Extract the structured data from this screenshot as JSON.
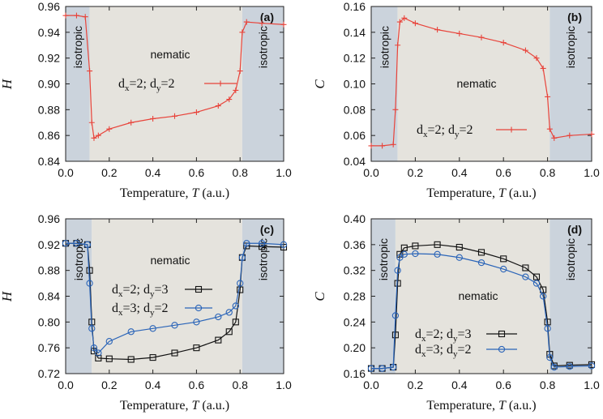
{
  "chart_data": [
    {
      "type": "line",
      "panel": "(a)",
      "xlabel": "Temperature, T (a.u.)",
      "ylabel": "H",
      "xlim": [
        0.0,
        1.0
      ],
      "ylim": [
        0.84,
        0.96
      ],
      "xticks": [
        "0.0",
        "0.2",
        "0.4",
        "0.6",
        "0.8",
        "1.0"
      ],
      "yticks": [
        "0.84",
        "0.86",
        "0.88",
        "0.90",
        "0.92",
        "0.94",
        "0.96"
      ],
      "regions": [
        {
          "label": "isotropic",
          "x0": 0.0,
          "x1": 0.11,
          "color": "#cbd3dc"
        },
        {
          "label": "nematic",
          "x0": 0.11,
          "x1": 0.81,
          "color": "#e5e3dd"
        },
        {
          "label": "isotropic",
          "x0": 0.81,
          "x1": 1.0,
          "color": "#cbd3dc"
        }
      ],
      "series": [
        {
          "name": "d_x=2; d_y=2",
          "legend": {
            "pre": "d",
            "s1": "x",
            "mid": "=2; d",
            "s2": "y",
            "post": "=2"
          },
          "color": "#e8433a",
          "marker": "plus",
          "x": [
            0.0,
            0.05,
            0.09,
            0.11,
            0.12,
            0.13,
            0.15,
            0.2,
            0.3,
            0.4,
            0.5,
            0.6,
            0.7,
            0.75,
            0.78,
            0.8,
            0.81,
            0.83,
            0.9,
            1.0
          ],
          "y": [
            0.953,
            0.953,
            0.952,
            0.91,
            0.87,
            0.858,
            0.86,
            0.865,
            0.87,
            0.873,
            0.875,
            0.878,
            0.883,
            0.888,
            0.895,
            0.91,
            0.94,
            0.948,
            0.947,
            0.946
          ]
        }
      ]
    },
    {
      "type": "line",
      "panel": "(b)",
      "xlabel": "Temperature, T (a.u.)",
      "ylabel": "C",
      "xlim": [
        0.0,
        1.0
      ],
      "ylim": [
        0.04,
        0.16
      ],
      "xticks": [
        "0.0",
        "0.2",
        "0.4",
        "0.6",
        "0.8",
        "1.0"
      ],
      "yticks": [
        "0.04",
        "0.06",
        "0.08",
        "0.10",
        "0.12",
        "0.14",
        "0.16"
      ],
      "regions": [
        {
          "label": "isotropic",
          "x0": 0.0,
          "x1": 0.12,
          "color": "#cbd3dc"
        },
        {
          "label": "nematic",
          "x0": 0.12,
          "x1": 0.81,
          "color": "#e5e3dd"
        },
        {
          "label": "isotropic",
          "x0": 0.81,
          "x1": 1.0,
          "color": "#cbd3dc"
        }
      ],
      "series": [
        {
          "name": "d_x=2; d_y=2",
          "legend": {
            "pre": "d",
            "s1": "x",
            "mid": "=2; d",
            "s2": "y",
            "post": "=2"
          },
          "color": "#e8433a",
          "marker": "plus",
          "x": [
            0.0,
            0.05,
            0.1,
            0.11,
            0.12,
            0.13,
            0.15,
            0.2,
            0.3,
            0.4,
            0.5,
            0.6,
            0.7,
            0.75,
            0.78,
            0.8,
            0.81,
            0.83,
            0.9,
            1.0
          ],
          "y": [
            0.052,
            0.052,
            0.053,
            0.08,
            0.13,
            0.148,
            0.151,
            0.147,
            0.142,
            0.139,
            0.136,
            0.132,
            0.126,
            0.12,
            0.112,
            0.09,
            0.065,
            0.058,
            0.06,
            0.061
          ]
        }
      ]
    },
    {
      "type": "line",
      "panel": "(c)",
      "xlabel": "Temperature, T (a.u.)",
      "ylabel": "H",
      "xlim": [
        0.0,
        1.0
      ],
      "ylim": [
        0.72,
        0.96
      ],
      "xticks": [
        "0.0",
        "0.2",
        "0.4",
        "0.6",
        "0.8",
        "1.0"
      ],
      "yticks": [
        "0.72",
        "0.76",
        "0.80",
        "0.84",
        "0.88",
        "0.92",
        "0.96"
      ],
      "regions": [
        {
          "label": "isotropic",
          "x0": 0.0,
          "x1": 0.12,
          "color": "#cbd3dc"
        },
        {
          "label": "nematic",
          "x0": 0.12,
          "x1": 0.81,
          "color": "#e5e3dd"
        },
        {
          "label": "isotropic",
          "x0": 0.81,
          "x1": 1.0,
          "color": "#cbd3dc"
        }
      ],
      "series": [
        {
          "name": "d_x=2; d_y=3",
          "legend": {
            "pre": "d",
            "s1": "x",
            "mid": "=2; d",
            "s2": "y",
            "post": "=3"
          },
          "color": "#111111",
          "marker": "square",
          "x": [
            0.0,
            0.05,
            0.1,
            0.11,
            0.12,
            0.13,
            0.15,
            0.2,
            0.3,
            0.4,
            0.5,
            0.6,
            0.7,
            0.75,
            0.78,
            0.8,
            0.81,
            0.83,
            0.9,
            1.0
          ],
          "y": [
            0.922,
            0.922,
            0.92,
            0.88,
            0.8,
            0.755,
            0.744,
            0.743,
            0.742,
            0.745,
            0.752,
            0.76,
            0.772,
            0.785,
            0.8,
            0.85,
            0.9,
            0.918,
            0.917,
            0.916
          ]
        },
        {
          "name": "d_x=3; d_y=2",
          "legend": {
            "pre": "d",
            "s1": "x",
            "mid": "=3; d",
            "s2": "y",
            "post": "=2"
          },
          "color": "#2a64b8",
          "marker": "circle",
          "x": [
            0.0,
            0.05,
            0.1,
            0.11,
            0.12,
            0.13,
            0.15,
            0.2,
            0.3,
            0.4,
            0.5,
            0.6,
            0.7,
            0.75,
            0.78,
            0.8,
            0.81,
            0.83,
            0.9,
            1.0
          ],
          "y": [
            0.922,
            0.922,
            0.92,
            0.86,
            0.79,
            0.76,
            0.752,
            0.77,
            0.785,
            0.79,
            0.795,
            0.8,
            0.808,
            0.815,
            0.825,
            0.86,
            0.9,
            0.922,
            0.922,
            0.92
          ]
        }
      ]
    },
    {
      "type": "line",
      "panel": "(d)",
      "xlabel": "Temperature, T (a.u.)",
      "ylabel": "C",
      "xlim": [
        0.0,
        1.0
      ],
      "ylim": [
        0.16,
        0.4
      ],
      "xticks": [
        "0.0",
        "0.2",
        "0.4",
        "0.6",
        "0.8",
        "1.0"
      ],
      "yticks": [
        "0.16",
        "0.20",
        "0.24",
        "0.28",
        "0.32",
        "0.36",
        "0.40"
      ],
      "regions": [
        {
          "label": "isotropic",
          "x0": 0.0,
          "x1": 0.11,
          "color": "#cbd3dc"
        },
        {
          "label": "nematic",
          "x0": 0.11,
          "x1": 0.81,
          "color": "#e5e3dd"
        },
        {
          "label": "isotropic",
          "x0": 0.81,
          "x1": 1.0,
          "color": "#cbd3dc"
        }
      ],
      "series": [
        {
          "name": "d_x=2; d_y=3",
          "legend": {
            "pre": "d",
            "s1": "x",
            "mid": "=2; d",
            "s2": "y",
            "post": "=3"
          },
          "color": "#111111",
          "marker": "square",
          "x": [
            0.0,
            0.05,
            0.1,
            0.11,
            0.12,
            0.13,
            0.15,
            0.2,
            0.3,
            0.4,
            0.5,
            0.6,
            0.7,
            0.75,
            0.78,
            0.8,
            0.81,
            0.83,
            0.9,
            1.0
          ],
          "y": [
            0.168,
            0.168,
            0.17,
            0.22,
            0.3,
            0.345,
            0.355,
            0.358,
            0.36,
            0.356,
            0.348,
            0.338,
            0.324,
            0.31,
            0.29,
            0.24,
            0.19,
            0.172,
            0.173,
            0.174
          ]
        },
        {
          "name": "d_x=3; d_y=2",
          "legend": {
            "pre": "d",
            "s1": "x",
            "mid": "=3; d",
            "s2": "y",
            "post": "=2"
          },
          "color": "#2a64b8",
          "marker": "circle",
          "x": [
            0.0,
            0.05,
            0.1,
            0.11,
            0.12,
            0.13,
            0.15,
            0.2,
            0.3,
            0.4,
            0.5,
            0.6,
            0.7,
            0.75,
            0.78,
            0.8,
            0.81,
            0.83,
            0.9,
            1.0
          ],
          "y": [
            0.168,
            0.168,
            0.17,
            0.25,
            0.32,
            0.34,
            0.345,
            0.346,
            0.345,
            0.34,
            0.332,
            0.322,
            0.31,
            0.3,
            0.28,
            0.23,
            0.185,
            0.17,
            0.171,
            0.172
          ]
        }
      ]
    }
  ]
}
